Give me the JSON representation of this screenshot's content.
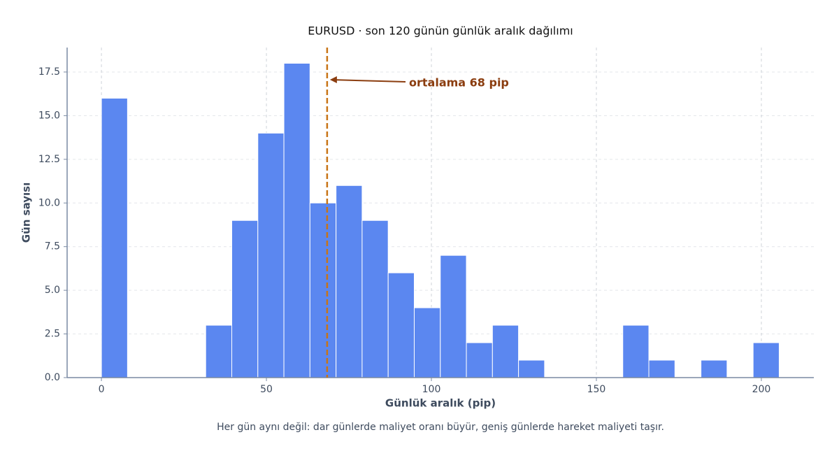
{
  "chart_data": {
    "type": "histogram",
    "title": "EURUSD · son 120 günün günlük aralık dağılımı",
    "x_label": "Günlük aralık (pip)",
    "y_label": "Gün sayısı",
    "footnote": "Her gün aynı değil: dar günlerde maliyet oranı büyür, geniş günlerde hareket maliyeti taşır.",
    "bins": [
      0,
      7.9,
      15.8,
      23.7,
      31.6,
      39.5,
      47.4,
      55.3,
      63.2,
      71.1,
      79,
      86.9,
      94.8,
      102.7,
      110.6,
      118.5,
      126.4,
      134.3,
      142.2,
      150.1,
      158,
      165.9,
      173.8,
      181.7,
      189.6,
      197.5,
      205.4
    ],
    "values": [
      16,
      0,
      0,
      0,
      3,
      9,
      14,
      18,
      10,
      11,
      9,
      6,
      4,
      7,
      2,
      3,
      1,
      0,
      0,
      0,
      3,
      1,
      0,
      1,
      0,
      2
    ],
    "color": "#5b87f0",
    "mean_line": 68.4,
    "mean_color": "#c87416",
    "annotation": "ortalama 68 pip",
    "annotation_color": "#8b3d0f",
    "xlim": [
      -10.4,
      215.9
    ],
    "ylim": [
      0,
      18.9
    ],
    "xticks": [
      0,
      50,
      100,
      150,
      200
    ],
    "yticks": [
      {
        "value": 0,
        "label": "0.0"
      },
      {
        "value": 2.5,
        "label": "2.5"
      },
      {
        "value": 5,
        "label": "5.0"
      },
      {
        "value": 7.5,
        "label": "7.5"
      },
      {
        "value": 10,
        "label": "10.0"
      },
      {
        "value": 12.5,
        "label": "12.5"
      },
      {
        "value": 15,
        "label": "15.0"
      },
      {
        "value": 17.5,
        "label": "17.5"
      }
    ],
    "grid": true
  }
}
